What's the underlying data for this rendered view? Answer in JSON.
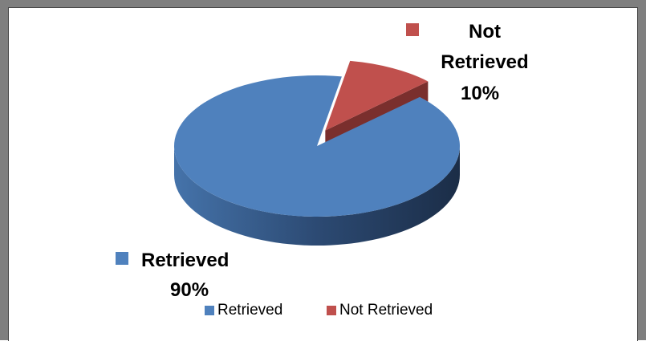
{
  "chart_data": {
    "type": "pie",
    "categories": [
      "Retrieved",
      "Not Retrieved"
    ],
    "values": [
      90,
      10
    ],
    "value_labels": [
      "90%",
      "10%"
    ],
    "colors": [
      "#4f81bd",
      "#c0504d"
    ],
    "legend": "bottom"
  }
}
